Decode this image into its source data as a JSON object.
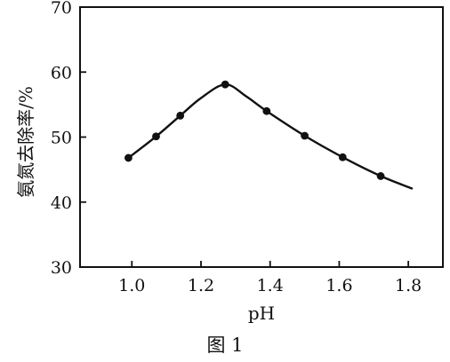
{
  "chart_data": {
    "type": "line",
    "xlabel": "pH",
    "ylabel": "氨氮去除率/%",
    "caption": "图 1",
    "xlim": [
      0.85,
      1.9
    ],
    "ylim": [
      30,
      70
    ],
    "x_ticks": [
      1.0,
      1.2,
      1.4,
      1.6,
      1.8
    ],
    "x_tick_labels": [
      "1.0",
      "1.2",
      "1.4",
      "1.6",
      "1.8"
    ],
    "y_ticks": [
      30,
      40,
      50,
      60,
      70
    ],
    "y_tick_labels": [
      "30",
      "40",
      "50",
      "60",
      "70"
    ],
    "grid": false,
    "legend": "none",
    "series": [
      {
        "points": [
          {
            "x": 0.99,
            "y": 46.8
          },
          {
            "x": 1.07,
            "y": 50.1
          },
          {
            "x": 1.14,
            "y": 53.3
          },
          {
            "x": 1.27,
            "y": 58.1
          },
          {
            "x": 1.39,
            "y": 54.0
          },
          {
            "x": 1.5,
            "y": 50.2
          },
          {
            "x": 1.61,
            "y": 46.9
          },
          {
            "x": 1.72,
            "y": 44.0
          }
        ],
        "curve": [
          {
            "x": 0.99,
            "y": 46.8
          },
          {
            "x": 1.07,
            "y": 50.1
          },
          {
            "x": 1.14,
            "y": 53.3
          },
          {
            "x": 1.2,
            "y": 56.0
          },
          {
            "x": 1.27,
            "y": 58.1
          },
          {
            "x": 1.33,
            "y": 56.3
          },
          {
            "x": 1.39,
            "y": 54.0
          },
          {
            "x": 1.5,
            "y": 50.2
          },
          {
            "x": 1.61,
            "y": 46.9
          },
          {
            "x": 1.72,
            "y": 44.0
          },
          {
            "x": 1.81,
            "y": 42.1
          }
        ]
      }
    ]
  }
}
